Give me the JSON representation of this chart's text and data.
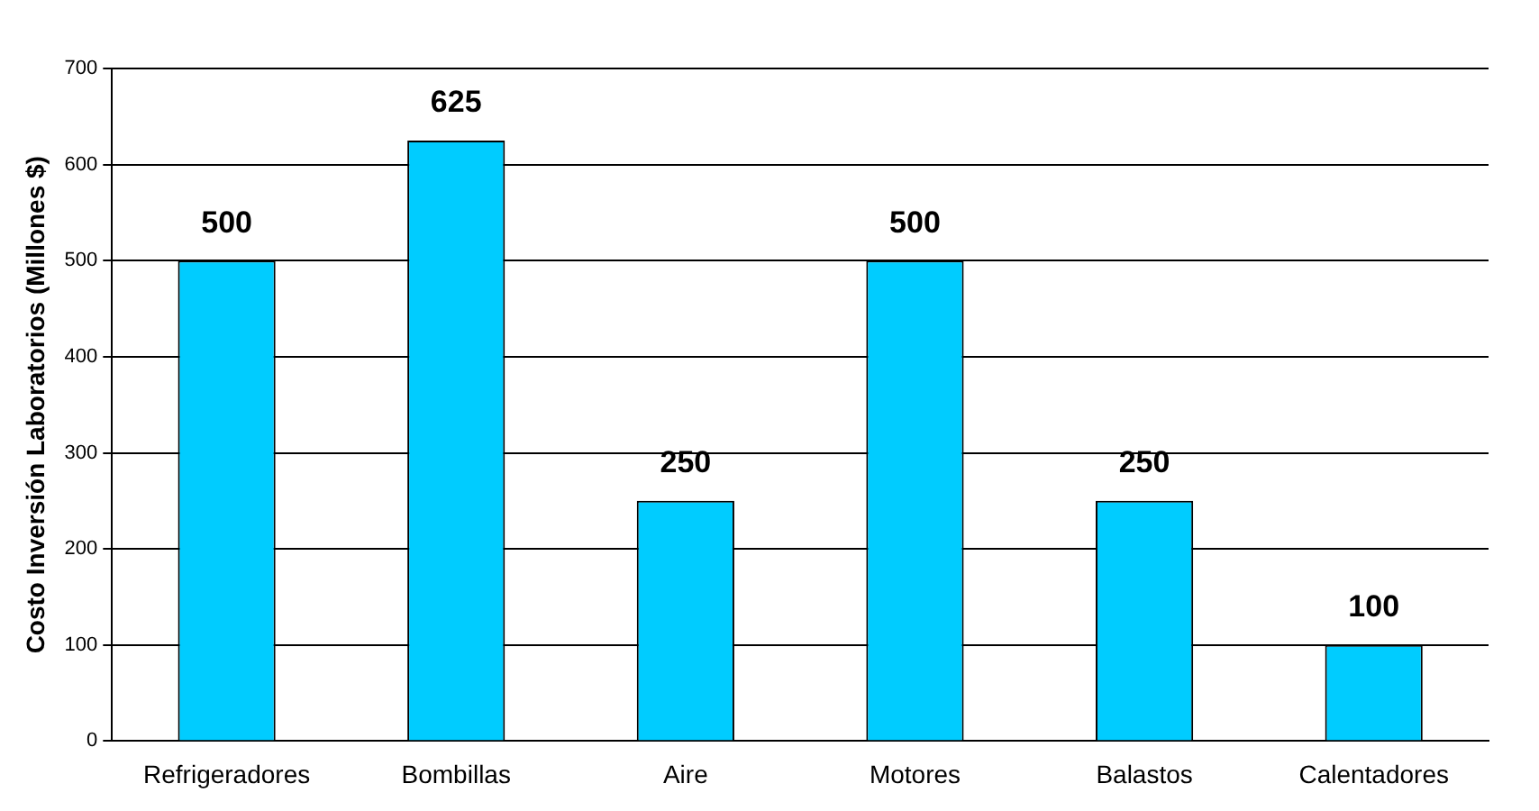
{
  "chart_data": {
    "type": "bar",
    "ylabel": "Costo Inversión Laboratorios (Millones $)",
    "categories": [
      "Refrigeradores",
      "Bombillas",
      "Aire",
      "Motores",
      "Balastos",
      "Calentadores"
    ],
    "values": [
      500,
      625,
      250,
      500,
      250,
      100
    ],
    "color": "#00ccff",
    "ylim": [
      0,
      700
    ],
    "yticks": [
      0,
      100,
      200,
      300,
      400,
      500,
      600,
      700
    ],
    "grid": "y",
    "data_labels": true
  }
}
